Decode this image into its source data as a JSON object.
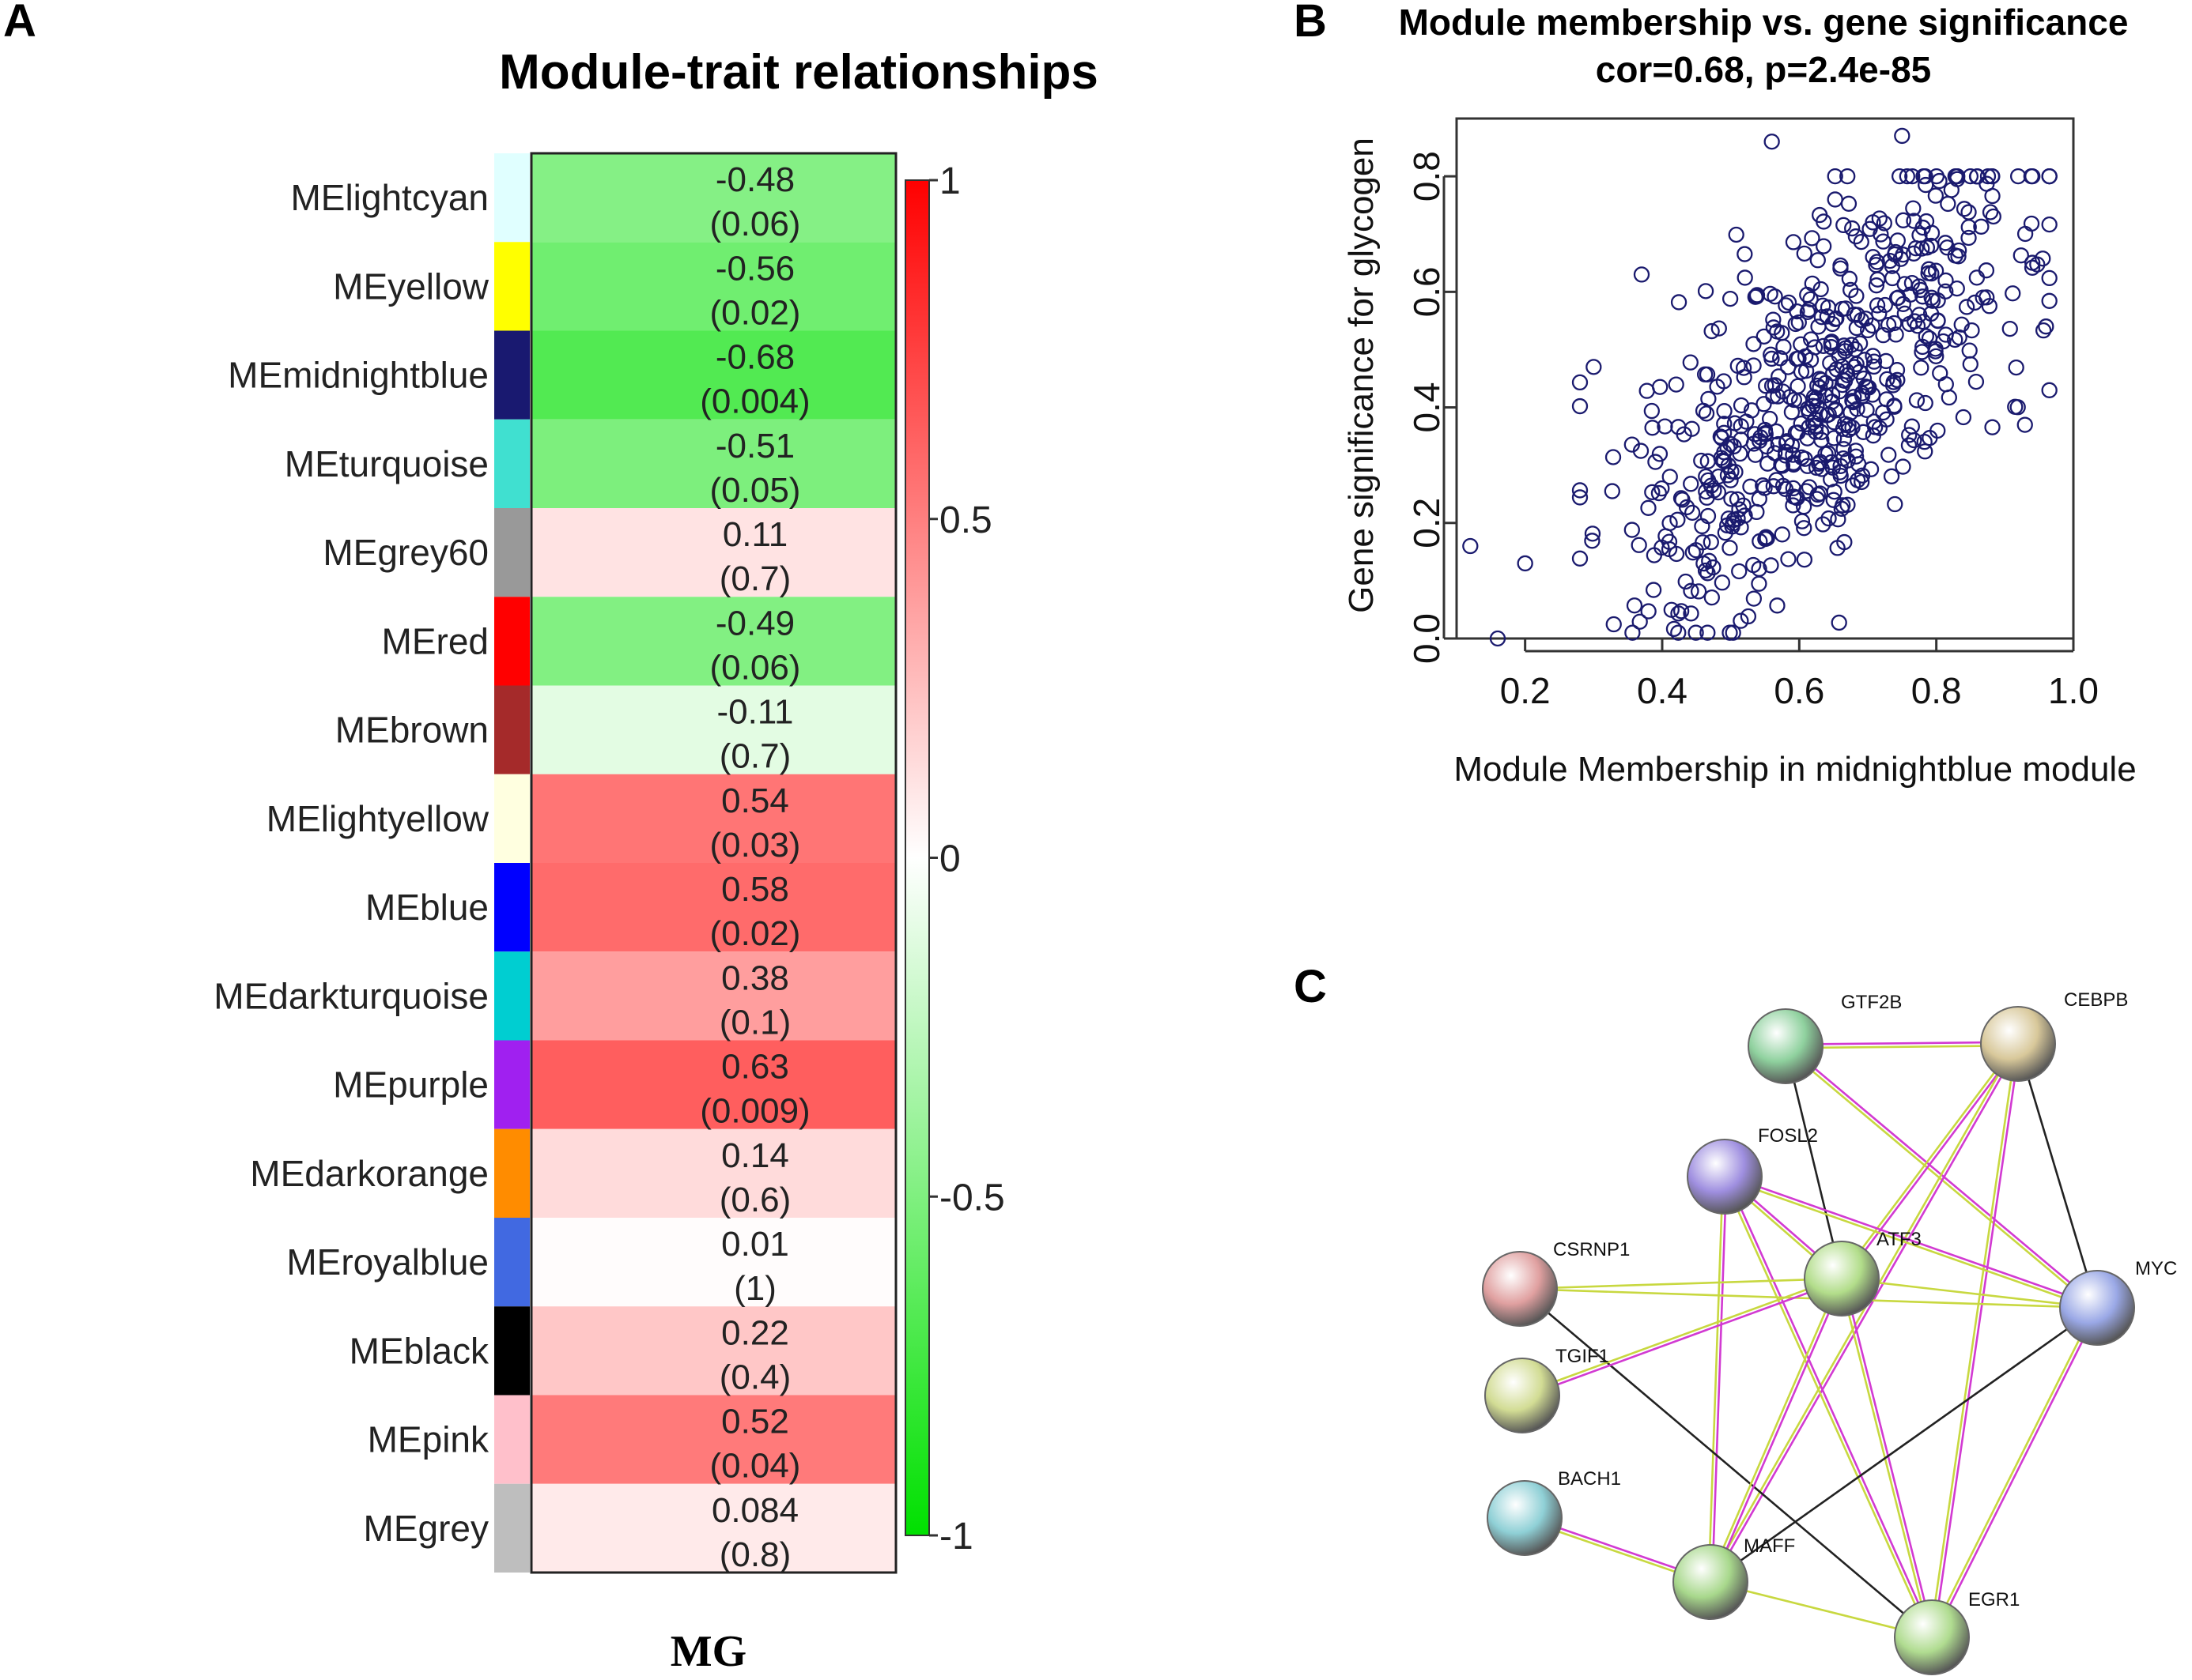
{
  "panels": {
    "a": "A",
    "b": "B",
    "c": "C"
  },
  "chart_data": [
    {
      "type": "heatmap",
      "title": "Module-trait relationships",
      "trait": "MG",
      "colorbar": {
        "ticks": [
          "1",
          "0.5",
          "0",
          "-0.5",
          "-1"
        ],
        "range": [
          -1,
          1
        ],
        "low_color": "#00e000",
        "mid_color": "#ffffff",
        "high_color": "#ff0000"
      },
      "modules": [
        {
          "name": "MElightcyan",
          "color": "#e0ffff",
          "cor": "-0.48",
          "p": "(0.06)"
        },
        {
          "name": "MEyellow",
          "color": "#ffff00",
          "cor": "-0.56",
          "p": "(0.02)"
        },
        {
          "name": "MEmidnightblue",
          "color": "#191970",
          "cor": "-0.68",
          "p": "(0.004)"
        },
        {
          "name": "MEturquoise",
          "color": "#40e0d0",
          "cor": "-0.51",
          "p": "(0.05)"
        },
        {
          "name": "MEgrey60",
          "color": "#999999",
          "cor": "0.11",
          "p": "(0.7)"
        },
        {
          "name": "MEred",
          "color": "#ff0000",
          "cor": "-0.49",
          "p": "(0.06)"
        },
        {
          "name": "MEbrown",
          "color": "#a52a2a",
          "cor": "-0.11",
          "p": "(0.7)"
        },
        {
          "name": "MElightyellow",
          "color": "#ffffe0",
          "cor": "0.54",
          "p": "(0.03)"
        },
        {
          "name": "MEblue",
          "color": "#0000ff",
          "cor": "0.58",
          "p": "(0.02)"
        },
        {
          "name": "MEdarkturquoise",
          "color": "#00ced1",
          "cor": "0.38",
          "p": "(0.1)"
        },
        {
          "name": "MEpurple",
          "color": "#a020f0",
          "cor": "0.63",
          "p": "(0.009)"
        },
        {
          "name": "MEdarkorange",
          "color": "#ff8c00",
          "cor": "0.14",
          "p": "(0.6)"
        },
        {
          "name": "MEroyalblue",
          "color": "#4169e1",
          "cor": "0.01",
          "p": "(1)"
        },
        {
          "name": "MEblack",
          "color": "#000000",
          "cor": "0.22",
          "p": "(0.4)"
        },
        {
          "name": "MEpink",
          "color": "#ffc0cb",
          "cor": "0.52",
          "p": "(0.04)"
        },
        {
          "name": "MEgrey",
          "color": "#bebebe",
          "cor": "0.084",
          "p": "(0.8)"
        }
      ]
    },
    {
      "type": "scatter",
      "title": "Module membership vs. gene significance",
      "subtitle": "cor=0.68, p=2.4e-85",
      "xlabel": "Module Membership in midnightblue module",
      "ylabel": "Gene significance for glycogen",
      "xlim": [
        0.1,
        1.0
      ],
      "ylim": [
        0.0,
        0.9
      ],
      "xticks": [
        "0.2",
        "0.4",
        "0.6",
        "0.8",
        "1.0"
      ],
      "yticks": [
        "0.0",
        "0.2",
        "0.4",
        "0.6",
        "0.8"
      ],
      "point_color": "#1a1a6e",
      "n_points": 600,
      "cor": 0.68,
      "sample_points": [
        [
          0.12,
          0.16
        ],
        [
          0.16,
          0.0
        ],
        [
          0.37,
          0.63
        ],
        [
          0.56,
          0.86
        ],
        [
          0.75,
          0.87
        ],
        [
          0.96,
          0.54
        ],
        [
          0.2,
          0.13
        ],
        [
          0.3,
          0.47
        ]
      ]
    },
    {
      "type": "network",
      "nodes": [
        {
          "id": "GTF2B",
          "label": "GTF2B",
          "color": "#8fd19e"
        },
        {
          "id": "CEBPB",
          "label": "CEBPB",
          "color": "#d8c89a"
        },
        {
          "id": "FOSL2",
          "label": "FOSL2",
          "color": "#9f8fe0"
        },
        {
          "id": "CSRNP1",
          "label": "CSRNP1",
          "color": "#e0a0a0"
        },
        {
          "id": "ATF3",
          "label": "ATF3",
          "color": "#b2dd8a"
        },
        {
          "id": "MYC",
          "label": "MYC",
          "color": "#9aa8e6"
        },
        {
          "id": "TGIF1",
          "label": "TGIF1",
          "color": "#d2dc94"
        },
        {
          "id": "BACH1",
          "label": "BACH1",
          "color": "#8fd0d6"
        },
        {
          "id": "MAFF",
          "label": "MAFF",
          "color": "#a8d88c"
        },
        {
          "id": "EGR1",
          "label": "EGR1",
          "color": "#b0dc90"
        }
      ],
      "edges": [
        [
          "GTF2B",
          "CEBPB",
          "pink,yellow"
        ],
        [
          "GTF2B",
          "ATF3",
          "black"
        ],
        [
          "GTF2B",
          "MYC",
          "pink,yellow"
        ],
        [
          "CEBPB",
          "ATF3",
          "pink,yellow"
        ],
        [
          "CEBPB",
          "MAFF",
          "pink,yellow"
        ],
        [
          "CEBPB",
          "EGR1",
          "pink,yellow"
        ],
        [
          "CEBPB",
          "MYC",
          "black"
        ],
        [
          "FOSL2",
          "ATF3",
          "pink,yellow"
        ],
        [
          "FOSL2",
          "MYC",
          "pink,yellow"
        ],
        [
          "FOSL2",
          "MAFF",
          "pink,yellow"
        ],
        [
          "FOSL2",
          "EGR1",
          "pink,yellow"
        ],
        [
          "CSRNP1",
          "ATF3",
          "yellow"
        ],
        [
          "CSRNP1",
          "EGR1",
          "black"
        ],
        [
          "CSRNP1",
          "MYC",
          "yellow"
        ],
        [
          "ATF3",
          "TGIF1",
          "pink,yellow"
        ],
        [
          "ATF3",
          "MAFF",
          "pink,yellow"
        ],
        [
          "ATF3",
          "EGR1",
          "pink,yellow"
        ],
        [
          "ATF3",
          "MYC",
          "yellow"
        ],
        [
          "MYC",
          "MAFF",
          "black"
        ],
        [
          "MYC",
          "EGR1",
          "pink,yellow"
        ],
        [
          "BACH1",
          "MAFF",
          "pink,yellow"
        ],
        [
          "MAFF",
          "EGR1",
          "yellow"
        ]
      ]
    }
  ]
}
